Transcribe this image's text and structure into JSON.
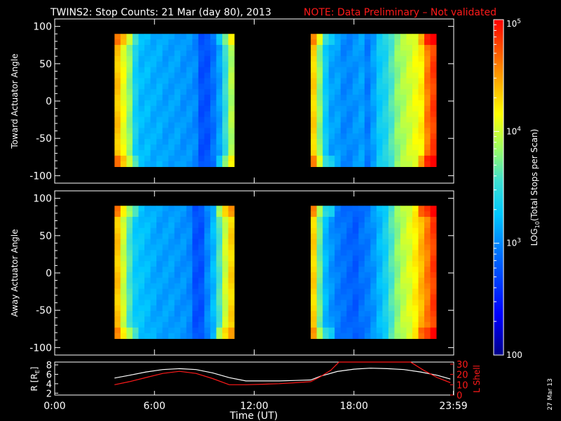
{
  "header": {
    "title": "TWINS2: Stop Counts: 21 Mar (day  80), 2013",
    "note": "NOTE: Data Preliminary – Not validated",
    "title_color": "#ffffff",
    "note_color": "#ff1a1a"
  },
  "footer": {
    "xlabel": "Time (UT)",
    "date_stamp": "27 Mar 13"
  },
  "chart_data": [
    {
      "type": "heatmap",
      "name": "toward",
      "ylabel": "Toward Actuator Angle",
      "ylim": [
        -110,
        110
      ],
      "yticks": [
        "100",
        "50",
        "0",
        "-50",
        "-100"
      ],
      "ytick_values": [
        100,
        50,
        0,
        -50,
        -100
      ],
      "xlim_hours": [
        0,
        24
      ],
      "angle_range": [
        -88,
        90
      ],
      "data_blocks_hours": [
        [
          3.6,
          10.8
        ],
        [
          15.4,
          22.95
        ]
      ],
      "column_log10_counts": {
        "block1": [
          4.35,
          4.1,
          3.8,
          3.35,
          3.2,
          3.2,
          3.15,
          3.15,
          3.1,
          3.1,
          3.1,
          3.05,
          3.05,
          3.0,
          2.75,
          2.75,
          2.9,
          3.1,
          3.5,
          3.9
        ],
        "block2": [
          4.3,
          3.8,
          3.3,
          3.1,
          3.1,
          3.0,
          3.0,
          3.05,
          3.1,
          2.95,
          3.1,
          3.3,
          3.4,
          3.6,
          3.8,
          3.9,
          4.0,
          4.1,
          4.2,
          4.6,
          4.8
        ]
      }
    },
    {
      "type": "heatmap",
      "name": "away",
      "ylabel": "Away Actuator Angle",
      "ylim": [
        -110,
        110
      ],
      "yticks": [
        "100",
        "50",
        "0",
        "-50",
        "-100"
      ],
      "ytick_values": [
        100,
        50,
        0,
        -50,
        -100
      ],
      "xlim_hours": [
        0,
        24
      ],
      "angle_range": [
        -88,
        90
      ],
      "data_blocks_hours": [
        [
          3.6,
          10.8
        ],
        [
          15.4,
          22.95
        ]
      ],
      "column_log10_counts": {
        "block1": [
          4.35,
          4.0,
          3.6,
          3.3,
          3.25,
          3.2,
          3.15,
          3.1,
          3.1,
          3.1,
          3.05,
          3.05,
          3.0,
          2.75,
          2.75,
          3.0,
          3.2,
          3.6,
          4.0,
          4.3
        ],
        "block2": [
          4.3,
          3.7,
          3.2,
          3.05,
          2.95,
          2.9,
          2.85,
          2.8,
          2.9,
          2.95,
          3.05,
          3.2,
          3.35,
          3.6,
          3.8,
          3.95,
          4.05,
          4.2,
          4.4,
          4.6,
          4.8
        ]
      }
    },
    {
      "type": "line",
      "name": "orbit",
      "xticks": [
        "0:00",
        "6:00",
        "12:00",
        "18:00",
        "23:59"
      ],
      "xtick_values_hours": [
        0,
        6,
        12,
        18,
        23.98
      ],
      "xlim_hours": [
        0,
        24
      ],
      "left_axis": {
        "label": "R [R",
        "label_sub": "E",
        "ylim": [
          1.6,
          8.6
        ],
        "ticks": [
          "8",
          "6",
          "4",
          "2"
        ],
        "tick_values": [
          8,
          6,
          4,
          2
        ],
        "color": "#ffffff"
      },
      "right_axis": {
        "label": "L Shell",
        "ylim": [
          0,
          32
        ],
        "ticks": [
          "30",
          "20",
          "10",
          "0"
        ],
        "tick_values": [
          30,
          20,
          10,
          0
        ],
        "color": "#ff1a1a"
      },
      "series": [
        {
          "axis": "left",
          "color": "#ffffff",
          "x": [
            3.6,
            4.5,
            5.5,
            6.5,
            7.5,
            8.5,
            9.5,
            10.5,
            11.5,
            12.5,
            13.5,
            14.5,
            15.4,
            16.0,
            17.0,
            18.0,
            19.0,
            20.0,
            21.0,
            22.0,
            23.0,
            23.8
          ],
          "y": [
            5.2,
            5.8,
            6.5,
            7.0,
            7.2,
            7.0,
            6.3,
            5.3,
            4.6,
            4.6,
            4.6,
            4.7,
            4.8,
            5.6,
            6.6,
            7.1,
            7.3,
            7.2,
            7.0,
            6.5,
            5.8,
            5.0
          ]
        },
        {
          "axis": "right",
          "color": "#ff1a1a",
          "x": [
            3.6,
            4.5,
            5.5,
            6.5,
            7.5,
            8.5,
            9.5,
            10.5,
            11.5,
            12.5,
            13.5,
            14.5,
            15.4,
            16.0,
            16.6,
            17.1,
            21.4,
            22.2,
            23.0,
            23.8
          ],
          "y": [
            10,
            13,
            17,
            21,
            23,
            21,
            16,
            10,
            10,
            10.5,
            11,
            12,
            13,
            18,
            24,
            32,
            32,
            24,
            17,
            12
          ]
        }
      ]
    }
  ],
  "colorbar": {
    "label": "LOG",
    "label_sub": "10",
    "label_tail": "(Total Stops per Scan)",
    "range_log10": [
      2,
      5
    ],
    "tick_labels": [
      {
        "base": "10",
        "exp": "5",
        "value": 5
      },
      {
        "base": "10",
        "exp": "4",
        "value": 4
      },
      {
        "base": "10",
        "exp": "3",
        "value": 3
      },
      {
        "base": "100",
        "exp": "",
        "value": 2
      }
    ]
  }
}
